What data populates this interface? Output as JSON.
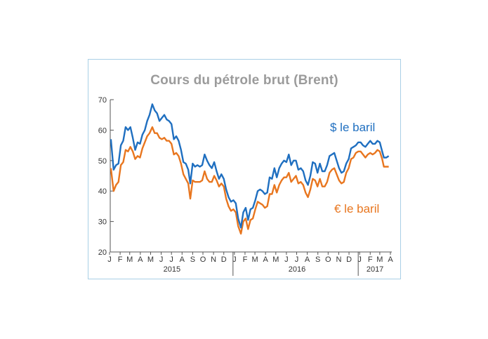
{
  "title": "Cours du pétrole brut (Brent)",
  "chart_data": {
    "type": "line",
    "title": "Cours du pétrole brut (Brent)",
    "ylim": [
      20,
      70
    ],
    "yticks": [
      20,
      30,
      40,
      50,
      60,
      70
    ],
    "grid": false,
    "month_ticks": [
      "J",
      "F",
      "M",
      "A",
      "M",
      "J",
      "J",
      "A",
      "S",
      "O",
      "N",
      "D",
      "J",
      "F",
      "M",
      "A",
      "M",
      "J",
      "J",
      "A",
      "S",
      "O",
      "N",
      "D",
      "J",
      "F",
      "M",
      "A"
    ],
    "years": [
      "2015",
      "2016",
      "2017"
    ],
    "series": [
      {
        "name": "$ le baril",
        "color": "#1f6fc0",
        "points": [
          [
            "2015-01-05",
            57.0
          ],
          [
            "2015-01-13",
            47.0
          ],
          [
            "2015-01-20",
            48.5
          ],
          [
            "2015-01-27",
            49.0
          ],
          [
            "2015-02-03",
            55.0
          ],
          [
            "2015-02-10",
            56.5
          ],
          [
            "2015-02-17",
            61.0
          ],
          [
            "2015-02-24",
            60.0
          ],
          [
            "2015-03-03",
            61.0
          ],
          [
            "2015-03-10",
            57.5
          ],
          [
            "2015-03-17",
            53.5
          ],
          [
            "2015-03-24",
            56.0
          ],
          [
            "2015-03-31",
            55.5
          ],
          [
            "2015-04-07",
            58.5
          ],
          [
            "2015-04-14",
            60.0
          ],
          [
            "2015-04-21",
            63.0
          ],
          [
            "2015-04-28",
            65.0
          ],
          [
            "2015-05-06",
            68.5
          ],
          [
            "2015-05-13",
            66.5
          ],
          [
            "2015-05-20",
            65.5
          ],
          [
            "2015-05-27",
            63.0
          ],
          [
            "2015-06-03",
            64.0
          ],
          [
            "2015-06-10",
            65.0
          ],
          [
            "2015-06-17",
            63.5
          ],
          [
            "2015-06-24",
            63.0
          ],
          [
            "2015-07-01",
            62.0
          ],
          [
            "2015-07-08",
            57.0
          ],
          [
            "2015-07-15",
            58.0
          ],
          [
            "2015-07-22",
            56.5
          ],
          [
            "2015-07-29",
            53.5
          ],
          [
            "2015-08-05",
            49.5
          ],
          [
            "2015-08-12",
            49.0
          ],
          [
            "2015-08-19",
            47.0
          ],
          [
            "2015-08-25",
            42.5
          ],
          [
            "2015-09-01",
            49.0
          ],
          [
            "2015-09-08",
            48.0
          ],
          [
            "2015-09-15",
            48.5
          ],
          [
            "2015-09-22",
            48.0
          ],
          [
            "2015-09-29",
            48.5
          ],
          [
            "2015-10-06",
            52.0
          ],
          [
            "2015-10-13",
            50.0
          ],
          [
            "2015-10-20",
            48.5
          ],
          [
            "2015-10-27",
            47.5
          ],
          [
            "2015-11-03",
            49.5
          ],
          [
            "2015-11-10",
            46.5
          ],
          [
            "2015-11-17",
            44.0
          ],
          [
            "2015-11-24",
            45.5
          ],
          [
            "2015-12-01",
            44.0
          ],
          [
            "2015-12-08",
            40.5
          ],
          [
            "2015-12-15",
            38.0
          ],
          [
            "2015-12-22",
            36.5
          ],
          [
            "2015-12-29",
            37.0
          ],
          [
            "2016-01-05",
            36.0
          ],
          [
            "2016-01-12",
            31.0
          ],
          [
            "2016-01-20",
            28.0
          ],
          [
            "2016-01-27",
            33.0
          ],
          [
            "2016-02-03",
            34.5
          ],
          [
            "2016-02-10",
            30.5
          ],
          [
            "2016-02-17",
            34.0
          ],
          [
            "2016-02-24",
            34.5
          ],
          [
            "2016-03-02",
            37.0
          ],
          [
            "2016-03-09",
            40.0
          ],
          [
            "2016-03-16",
            40.5
          ],
          [
            "2016-03-23",
            40.0
          ],
          [
            "2016-03-30",
            39.0
          ],
          [
            "2016-04-06",
            39.5
          ],
          [
            "2016-04-13",
            44.5
          ],
          [
            "2016-04-20",
            44.0
          ],
          [
            "2016-04-27",
            47.5
          ],
          [
            "2016-05-04",
            44.5
          ],
          [
            "2016-05-11",
            47.5
          ],
          [
            "2016-05-18",
            49.0
          ],
          [
            "2016-05-25",
            50.0
          ],
          [
            "2016-06-01",
            49.5
          ],
          [
            "2016-06-08",
            52.0
          ],
          [
            "2016-06-15",
            48.5
          ],
          [
            "2016-06-22",
            50.0
          ],
          [
            "2016-06-29",
            50.0
          ],
          [
            "2016-07-06",
            47.0
          ],
          [
            "2016-07-13",
            47.5
          ],
          [
            "2016-07-20",
            46.5
          ],
          [
            "2016-07-27",
            43.5
          ],
          [
            "2016-08-03",
            42.0
          ],
          [
            "2016-08-10",
            45.0
          ],
          [
            "2016-08-17",
            49.5
          ],
          [
            "2016-08-24",
            49.0
          ],
          [
            "2016-08-31",
            46.0
          ],
          [
            "2016-09-07",
            49.0
          ],
          [
            "2016-09-14",
            46.5
          ],
          [
            "2016-09-21",
            46.5
          ],
          [
            "2016-09-28",
            48.5
          ],
          [
            "2016-10-05",
            51.5
          ],
          [
            "2016-10-12",
            52.0
          ],
          [
            "2016-10-19",
            52.5
          ],
          [
            "2016-10-26",
            50.0
          ],
          [
            "2016-11-02",
            47.5
          ],
          [
            "2016-11-09",
            46.0
          ],
          [
            "2016-11-16",
            46.5
          ],
          [
            "2016-11-23",
            49.0
          ],
          [
            "2016-11-30",
            50.5
          ],
          [
            "2016-12-07",
            54.0
          ],
          [
            "2016-12-14",
            54.5
          ],
          [
            "2016-12-21",
            55.0
          ],
          [
            "2016-12-28",
            56.0
          ],
          [
            "2017-01-04",
            56.0
          ],
          [
            "2017-01-11",
            55.0
          ],
          [
            "2017-01-18",
            54.5
          ],
          [
            "2017-01-25",
            55.5
          ],
          [
            "2017-02-01",
            56.5
          ],
          [
            "2017-02-08",
            55.5
          ],
          [
            "2017-02-15",
            55.5
          ],
          [
            "2017-02-22",
            56.5
          ],
          [
            "2017-03-01",
            56.0
          ],
          [
            "2017-03-08",
            53.0
          ],
          [
            "2017-03-13",
            51.0
          ],
          [
            "2017-03-20",
            51.0
          ],
          [
            "2017-03-27",
            51.5
          ]
        ]
      },
      {
        "name": "€ le baril",
        "color": "#e8761f",
        "points": [
          [
            "2015-01-05",
            47.5
          ],
          [
            "2015-01-13",
            40.0
          ],
          [
            "2015-01-20",
            42.0
          ],
          [
            "2015-01-27",
            43.0
          ],
          [
            "2015-02-03",
            48.5
          ],
          [
            "2015-02-10",
            49.5
          ],
          [
            "2015-02-17",
            53.5
          ],
          [
            "2015-02-24",
            53.0
          ],
          [
            "2015-03-03",
            54.5
          ],
          [
            "2015-03-10",
            53.0
          ],
          [
            "2015-03-17",
            50.5
          ],
          [
            "2015-03-24",
            51.5
          ],
          [
            "2015-03-31",
            51.0
          ],
          [
            "2015-04-07",
            54.0
          ],
          [
            "2015-04-14",
            56.0
          ],
          [
            "2015-04-21",
            58.0
          ],
          [
            "2015-04-28",
            59.0
          ],
          [
            "2015-05-06",
            61.0
          ],
          [
            "2015-05-13",
            59.0
          ],
          [
            "2015-05-20",
            59.0
          ],
          [
            "2015-05-27",
            57.5
          ],
          [
            "2015-06-03",
            57.0
          ],
          [
            "2015-06-10",
            57.5
          ],
          [
            "2015-06-17",
            56.5
          ],
          [
            "2015-06-24",
            56.5
          ],
          [
            "2015-07-01",
            55.5
          ],
          [
            "2015-07-08",
            52.0
          ],
          [
            "2015-07-15",
            52.5
          ],
          [
            "2015-07-22",
            51.5
          ],
          [
            "2015-07-29",
            49.0
          ],
          [
            "2015-08-05",
            45.5
          ],
          [
            "2015-08-12",
            44.0
          ],
          [
            "2015-08-19",
            42.5
          ],
          [
            "2015-08-25",
            37.5
          ],
          [
            "2015-09-01",
            43.5
          ],
          [
            "2015-09-08",
            43.0
          ],
          [
            "2015-09-15",
            43.0
          ],
          [
            "2015-09-22",
            43.0
          ],
          [
            "2015-09-29",
            43.5
          ],
          [
            "2015-10-06",
            46.5
          ],
          [
            "2015-10-13",
            44.0
          ],
          [
            "2015-10-20",
            43.0
          ],
          [
            "2015-10-27",
            43.0
          ],
          [
            "2015-11-03",
            45.0
          ],
          [
            "2015-11-10",
            43.5
          ],
          [
            "2015-11-17",
            41.5
          ],
          [
            "2015-11-24",
            42.5
          ],
          [
            "2015-12-01",
            41.5
          ],
          [
            "2015-12-08",
            37.5
          ],
          [
            "2015-12-15",
            35.0
          ],
          [
            "2015-12-22",
            33.5
          ],
          [
            "2015-12-29",
            34.0
          ],
          [
            "2016-01-05",
            33.0
          ],
          [
            "2016-01-12",
            28.5
          ],
          [
            "2016-01-20",
            26.0
          ],
          [
            "2016-01-27",
            30.0
          ],
          [
            "2016-02-03",
            31.0
          ],
          [
            "2016-02-10",
            27.5
          ],
          [
            "2016-02-17",
            30.5
          ],
          [
            "2016-02-24",
            31.0
          ],
          [
            "2016-03-02",
            34.0
          ],
          [
            "2016-03-09",
            36.5
          ],
          [
            "2016-03-16",
            36.0
          ],
          [
            "2016-03-23",
            35.5
          ],
          [
            "2016-03-30",
            34.5
          ],
          [
            "2016-04-06",
            35.0
          ],
          [
            "2016-04-13",
            39.0
          ],
          [
            "2016-04-20",
            39.0
          ],
          [
            "2016-04-27",
            42.0
          ],
          [
            "2016-05-04",
            39.5
          ],
          [
            "2016-05-11",
            42.0
          ],
          [
            "2016-05-18",
            43.5
          ],
          [
            "2016-05-25",
            44.5
          ],
          [
            "2016-06-01",
            44.5
          ],
          [
            "2016-06-08",
            46.0
          ],
          [
            "2016-06-15",
            43.0
          ],
          [
            "2016-06-22",
            44.0
          ],
          [
            "2016-06-29",
            45.0
          ],
          [
            "2016-07-06",
            42.5
          ],
          [
            "2016-07-13",
            43.0
          ],
          [
            "2016-07-20",
            42.0
          ],
          [
            "2016-07-27",
            39.5
          ],
          [
            "2016-08-03",
            38.0
          ],
          [
            "2016-08-10",
            40.5
          ],
          [
            "2016-08-17",
            44.0
          ],
          [
            "2016-08-24",
            43.5
          ],
          [
            "2016-08-31",
            41.5
          ],
          [
            "2016-09-07",
            44.0
          ],
          [
            "2016-09-14",
            41.5
          ],
          [
            "2016-09-21",
            41.5
          ],
          [
            "2016-09-28",
            43.0
          ],
          [
            "2016-10-05",
            46.0
          ],
          [
            "2016-10-12",
            47.0
          ],
          [
            "2016-10-19",
            47.5
          ],
          [
            "2016-10-26",
            45.5
          ],
          [
            "2016-11-02",
            43.5
          ],
          [
            "2016-11-09",
            42.5
          ],
          [
            "2016-11-16",
            43.0
          ],
          [
            "2016-11-23",
            46.0
          ],
          [
            "2016-11-30",
            47.5
          ],
          [
            "2016-12-07",
            50.5
          ],
          [
            "2016-12-14",
            51.0
          ],
          [
            "2016-12-21",
            52.5
          ],
          [
            "2016-12-28",
            53.0
          ],
          [
            "2017-01-04",
            53.0
          ],
          [
            "2017-01-11",
            52.0
          ],
          [
            "2017-01-18",
            51.0
          ],
          [
            "2017-01-25",
            52.0
          ],
          [
            "2017-02-01",
            52.5
          ],
          [
            "2017-02-08",
            52.0
          ],
          [
            "2017-02-15",
            52.5
          ],
          [
            "2017-02-22",
            53.5
          ],
          [
            "2017-03-01",
            53.0
          ],
          [
            "2017-03-08",
            50.5
          ],
          [
            "2017-03-13",
            48.0
          ],
          [
            "2017-03-20",
            48.0
          ],
          [
            "2017-03-27",
            48.0
          ]
        ]
      }
    ]
  }
}
